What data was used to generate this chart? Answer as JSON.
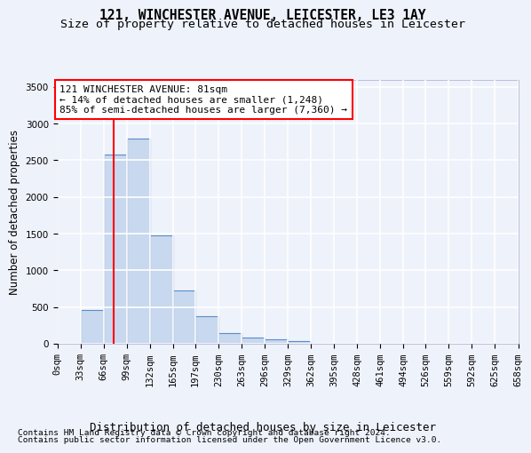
{
  "title_line1": "121, WINCHESTER AVENUE, LEICESTER, LE3 1AY",
  "title_line2": "Size of property relative to detached houses in Leicester",
  "xlabel": "Distribution of detached houses by size in Leicester",
  "ylabel": "Number of detached properties",
  "footer_line1": "Contains HM Land Registry data © Crown copyright and database right 2024.",
  "footer_line2": "Contains public sector information licensed under the Open Government Licence v3.0.",
  "annotation_line1": "121 WINCHESTER AVENUE: 81sqm",
  "annotation_line2": "← 14% of detached houses are smaller (1,248)",
  "annotation_line3": "85% of semi-detached houses are larger (7,360) →",
  "bar_color": "#c8d8ee",
  "bar_edge_color": "#5b8cc8",
  "property_size_sqm": 81,
  "bins": [
    0,
    33,
    66,
    99,
    132,
    165,
    197,
    230,
    263,
    296,
    329,
    362,
    395,
    428,
    461,
    494,
    526,
    559,
    592,
    625,
    658
  ],
  "counts": [
    5,
    460,
    2580,
    2800,
    1480,
    730,
    380,
    150,
    80,
    65,
    40,
    0,
    0,
    0,
    0,
    0,
    0,
    0,
    0,
    0
  ],
  "tick_labels": [
    "0sqm",
    "33sqm",
    "66sqm",
    "99sqm",
    "132sqm",
    "165sqm",
    "197sqm",
    "230sqm",
    "263sqm",
    "296sqm",
    "329sqm",
    "362sqm",
    "395sqm",
    "428sqm",
    "461sqm",
    "494sqm",
    "526sqm",
    "559sqm",
    "592sqm",
    "625sqm",
    "658sqm"
  ],
  "ylim": [
    0,
    3600
  ],
  "yticks": [
    0,
    500,
    1000,
    1500,
    2000,
    2500,
    3000,
    3500
  ],
  "background_color": "#eef2fb",
  "plot_bg_color": "#eef2fb",
  "grid_color": "#ffffff",
  "title_fontsize": 10.5,
  "subtitle_fontsize": 9.5,
  "axis_label_fontsize": 8.5,
  "tick_fontsize": 7.5,
  "annotation_fontsize": 8,
  "footer_fontsize": 6.8
}
